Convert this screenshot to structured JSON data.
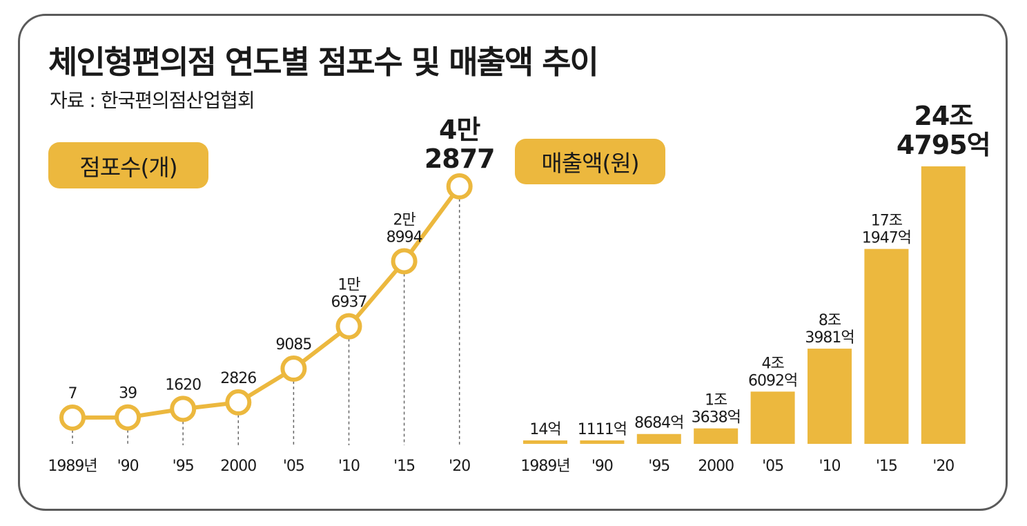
{
  "title": "체인형편의점 연도별 점포수 및 매출액 추이",
  "source": "자료 : 한국편의점산업협회",
  "colors": {
    "accent": "#ecb83e",
    "text": "#1a1a1a",
    "frame": "#5a5a5a",
    "dash": "#666666"
  },
  "chart_data": [
    {
      "type": "line",
      "badge": "점포수(개)",
      "categories": [
        "1989년",
        "'90",
        "'95",
        "2000",
        "'05",
        "'10",
        "'15",
        "'20"
      ],
      "values": [
        7,
        39,
        1620,
        2826,
        9085,
        16937,
        28994,
        42877
      ],
      "value_labels": [
        [
          "7"
        ],
        [
          "39"
        ],
        [
          "1620"
        ],
        [
          "2826"
        ],
        [
          "9085"
        ],
        [
          "1만",
          "6937"
        ],
        [
          "2만",
          "8994"
        ],
        [
          "4만",
          "2877"
        ]
      ]
    },
    {
      "type": "bar",
      "badge": "매출액(원)",
      "categories": [
        "1989년",
        "'90",
        "'95",
        "2000",
        "'05",
        "'10",
        "'15",
        "'20"
      ],
      "values": [
        14,
        1111,
        8684,
        13638,
        46092,
        83981,
        171947,
        244795
      ],
      "unit": "억",
      "value_labels": [
        [
          "14억"
        ],
        [
          "1111억"
        ],
        [
          "8684억"
        ],
        [
          "1조",
          "3638억"
        ],
        [
          "4조",
          "6092억"
        ],
        [
          "8조",
          "3981억"
        ],
        [
          "17조",
          "1947억"
        ],
        [
          "24조",
          "4795억"
        ]
      ]
    }
  ]
}
